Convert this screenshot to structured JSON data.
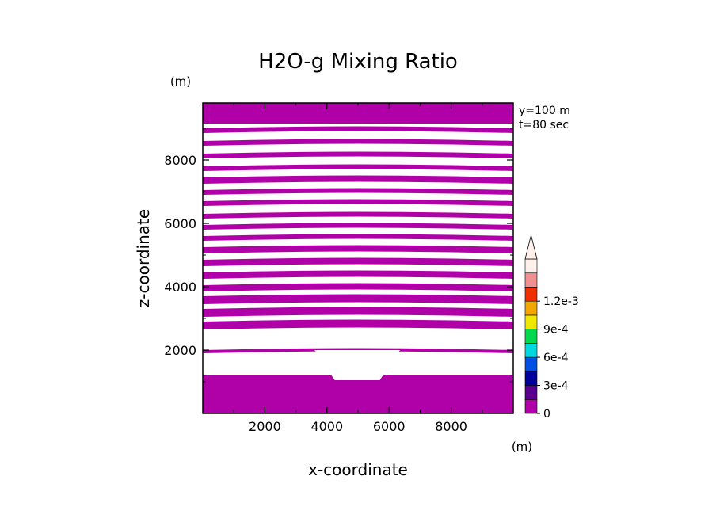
{
  "chart_data": {
    "type": "heatmap",
    "title": "H2O-g Mixing Ratio",
    "xlabel": "x-coordinate",
    "ylabel": "z-coordinate",
    "x_unit": "(m)",
    "y_unit": "(m)",
    "annotations": [
      "y=100 m",
      "t=80 sec"
    ],
    "xlim": [
      0,
      10000
    ],
    "ylim": [
      0,
      9800
    ],
    "x_ticks": [
      2000,
      4000,
      6000,
      8000
    ],
    "y_ticks": [
      2000,
      4000,
      6000,
      8000
    ],
    "colorbar": {
      "levels": [
        0,
        0.00015,
        0.0003,
        0.00045,
        0.0006,
        0.00075,
        0.0009,
        0.00105,
        0.0012,
        0.00135
      ],
      "colors": [
        "#b000a8",
        "#5a0090",
        "#00009a",
        "#0050e8",
        "#00d8e0",
        "#00d850",
        "#f0e800",
        "#f0a800",
        "#f03000",
        "#f09090",
        "#fff0ec"
      ],
      "tick_labels": [
        "0",
        "3e-4",
        "6e-4",
        "9e-4",
        "1.2e-3"
      ],
      "tick_values": [
        0,
        0.0003,
        0.0006,
        0.0009,
        0.0012
      ],
      "extend": "max"
    },
    "field": {
      "color": "#b000a8",
      "bands_z": [
        [
          0,
          1200
        ],
        [
          1900,
          2000
        ],
        [
          2650,
          2900
        ],
        [
          3050,
          3300
        ],
        [
          3450,
          3700
        ],
        [
          3850,
          4050
        ],
        [
          4250,
          4450
        ],
        [
          4650,
          4850
        ],
        [
          5050,
          5250
        ],
        [
          5450,
          5600
        ],
        [
          5800,
          5950
        ],
        [
          6150,
          6300
        ],
        [
          6550,
          6700
        ],
        [
          6900,
          7050
        ],
        [
          7250,
          7450
        ],
        [
          7650,
          7800
        ],
        [
          8050,
          8200
        ],
        [
          8450,
          8600
        ],
        [
          8850,
          9000
        ],
        [
          9150,
          9800
        ]
      ],
      "hole": {
        "polygon": [
          [
            3600,
            2000
          ],
          [
            4250,
            1050
          ],
          [
            5700,
            1050
          ],
          [
            6350,
            2000
          ]
        ]
      }
    }
  }
}
